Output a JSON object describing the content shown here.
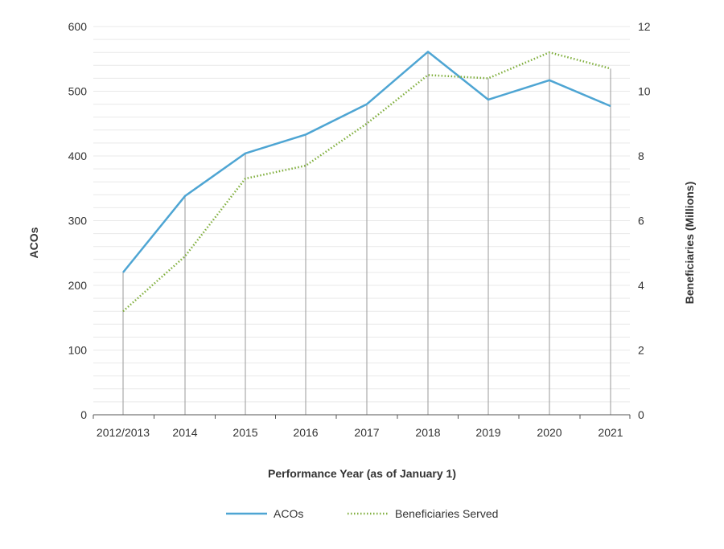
{
  "chart_data": {
    "type": "line",
    "categories": [
      "2012/2013",
      "2014",
      "2015",
      "2016",
      "2017",
      "2018",
      "2019",
      "2020",
      "2021"
    ],
    "series": [
      {
        "name": "ACOs",
        "axis": "left",
        "color": "#4ea5d3",
        "style": "solid",
        "values": [
          220,
          338,
          404,
          433,
          480,
          561,
          487,
          517,
          477
        ]
      },
      {
        "name": "Beneficiaries Served",
        "axis": "right",
        "color": "#7fae3c",
        "style": "dotted",
        "values": [
          3.2,
          4.9,
          7.3,
          7.7,
          9.0,
          10.5,
          10.4,
          11.2,
          10.7
        ]
      }
    ],
    "xlabel": "Performance Year (as of January 1)",
    "ylabel": "ACOs",
    "y2label": "Beneficiaries (Millions)",
    "ylim": [
      0,
      600
    ],
    "y2lim": [
      0,
      12
    ],
    "yticks": [
      "0",
      "100",
      "200",
      "300",
      "400",
      "500",
      "600"
    ],
    "y2ticks": [
      "0",
      "2",
      "4",
      "6",
      "8",
      "10",
      "12"
    ],
    "grid": "horizontal",
    "legend_position": "bottom"
  }
}
